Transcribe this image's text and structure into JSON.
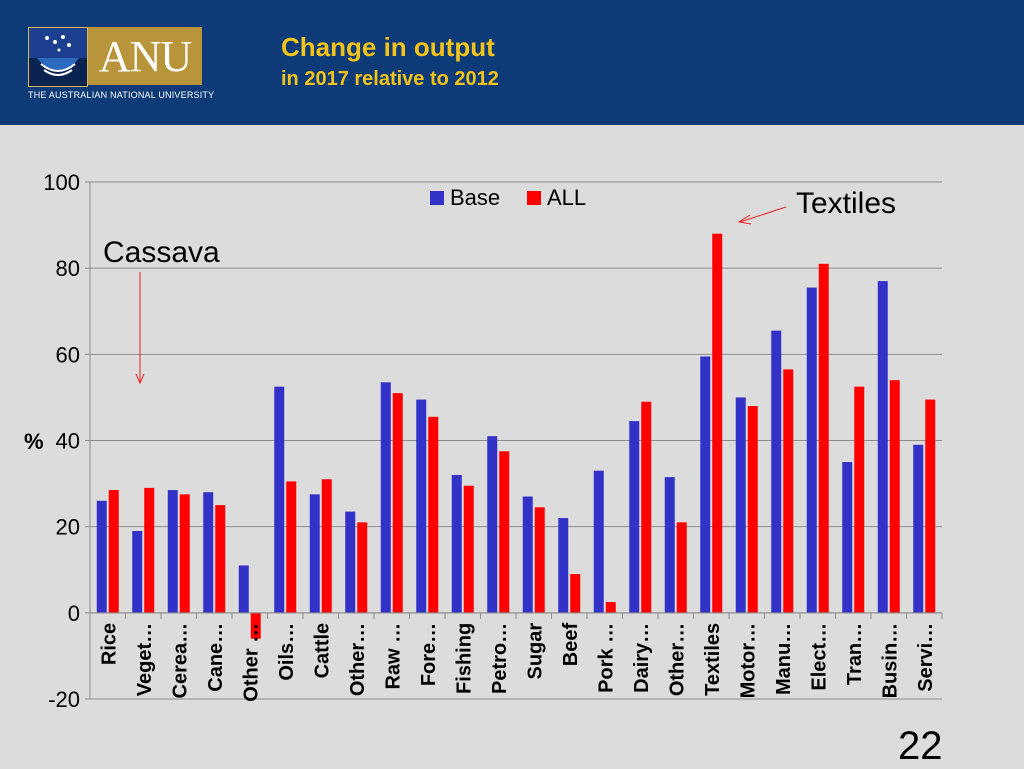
{
  "header": {
    "title": "Change in output",
    "subtitle": "in 2017 relative to 2012",
    "logo_text": "ANU",
    "university_name": "THE AUSTRALIAN NATIONAL UNIVERSITY"
  },
  "page_number": "22",
  "colors": {
    "header_bg": "#0e3a78",
    "title": "#f2c419",
    "base": "#3232c8",
    "all": "#ff0000",
    "annotation": "#ee2222"
  },
  "chart_data": {
    "type": "bar",
    "title": "",
    "xlabel": "",
    "ylabel": "%",
    "ylim": [
      -20,
      100
    ],
    "yticks": [
      -20,
      0,
      20,
      40,
      60,
      80,
      100
    ],
    "grid": true,
    "legend_position": "top",
    "categories": [
      "Rice",
      "Veget…",
      "Cerea…",
      "Cane…",
      "Other …",
      "Oils…",
      "Cattle",
      "Other…",
      "Raw …",
      "Fore…",
      "Fishing",
      "Petro…",
      "Sugar",
      "Beef",
      "Pork …",
      "Dairy…",
      "Other…",
      "Textiles",
      "Motor…",
      "Manu…",
      "Elect…",
      "Tran…",
      "Busin…",
      "Servi…"
    ],
    "series": [
      {
        "name": "Base",
        "values": [
          26,
          19,
          28.5,
          28,
          11,
          52.5,
          27.5,
          23.5,
          53.5,
          49.5,
          32,
          41,
          27,
          22,
          33,
          44.5,
          31.5,
          59.5,
          50,
          65.5,
          75.5,
          35,
          77,
          39
        ]
      },
      {
        "name": "ALL",
        "values": [
          28.5,
          29,
          27.5,
          25,
          -6,
          30.5,
          31,
          21,
          51,
          45.5,
          29.5,
          37.5,
          24.5,
          9,
          2.5,
          49,
          21,
          88,
          48,
          56.5,
          81,
          52.5,
          54,
          49.5
        ]
      }
    ],
    "annotations": [
      {
        "text": "Cassava"
      },
      {
        "text": "Textiles"
      }
    ]
  }
}
